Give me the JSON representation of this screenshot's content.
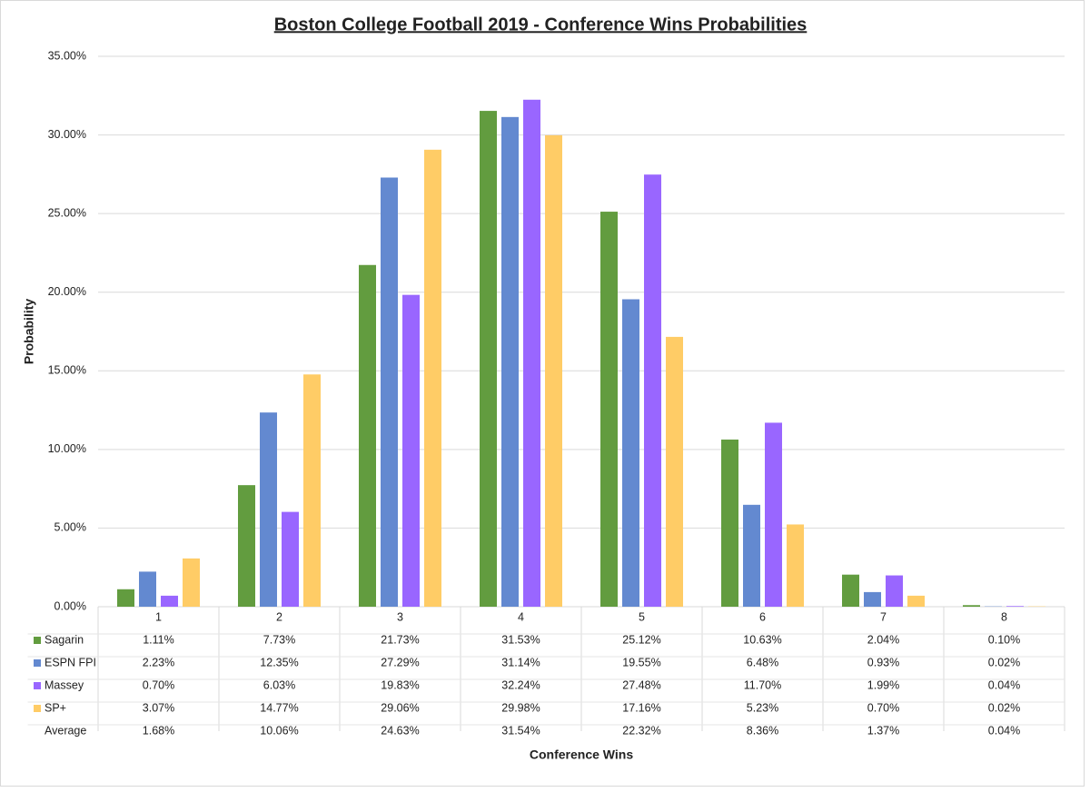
{
  "chart_data": {
    "type": "bar",
    "title": "Boston College Football 2019 - Conference Wins Probabilities",
    "xlabel": "Conference Wins",
    "ylabel": "Probability",
    "categories": [
      "1",
      "2",
      "3",
      "4",
      "5",
      "6",
      "7",
      "8"
    ],
    "series": [
      {
        "name": "Sagarin",
        "color": "#629c3f",
        "values": [
          1.11,
          7.73,
          21.73,
          31.53,
          25.12,
          10.63,
          2.04,
          0.1
        ],
        "value_labels": [
          "1.11%",
          "7.73%",
          "21.73%",
          "31.53%",
          "25.12%",
          "10.63%",
          "2.04%",
          "0.10%"
        ]
      },
      {
        "name": "ESPN FPI",
        "color": "#6389d0",
        "values": [
          2.23,
          12.35,
          27.29,
          31.14,
          19.55,
          6.48,
          0.93,
          0.02
        ],
        "value_labels": [
          "2.23%",
          "12.35%",
          "27.29%",
          "31.14%",
          "19.55%",
          "6.48%",
          "0.93%",
          "0.02%"
        ]
      },
      {
        "name": "Massey",
        "color": "#9966ff",
        "values": [
          0.7,
          6.03,
          19.83,
          32.24,
          27.48,
          11.7,
          1.99,
          0.04
        ],
        "value_labels": [
          "0.70%",
          "6.03%",
          "19.83%",
          "32.24%",
          "27.48%",
          "11.70%",
          "1.99%",
          "0.04%"
        ]
      },
      {
        "name": "SP+",
        "color": "#ffcc66",
        "values": [
          3.07,
          14.77,
          29.06,
          29.98,
          17.16,
          5.23,
          0.7,
          0.02
        ],
        "value_labels": [
          "3.07%",
          "14.77%",
          "29.06%",
          "29.98%",
          "17.16%",
          "5.23%",
          "0.70%",
          "0.02%"
        ]
      }
    ],
    "average": {
      "name": "Average",
      "values": [
        1.68,
        10.06,
        24.63,
        31.54,
        22.32,
        8.36,
        1.37,
        0.04
      ],
      "value_labels": [
        "1.68%",
        "10.06%",
        "24.63%",
        "31.54%",
        "22.32%",
        "8.36%",
        "1.37%",
        "0.04%"
      ]
    },
    "ylim": [
      0,
      35
    ],
    "yticks": [
      {
        "value": 0,
        "label": "0.00%"
      },
      {
        "value": 5,
        "label": "5.00%"
      },
      {
        "value": 10,
        "label": "10.00%"
      },
      {
        "value": 15,
        "label": "15.00%"
      },
      {
        "value": 20,
        "label": "20.00%"
      },
      {
        "value": 25,
        "label": "25.00%"
      },
      {
        "value": 30,
        "label": "30.00%"
      },
      {
        "value": 35,
        "label": "35.00%"
      }
    ],
    "grid": true
  }
}
